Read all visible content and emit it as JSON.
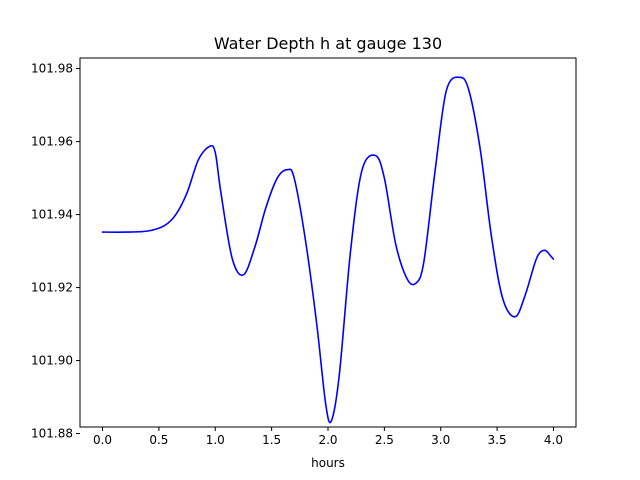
{
  "chart_data": {
    "type": "line",
    "title": "Water Depth h at gauge 130",
    "xlabel": "hours",
    "ylabel": "",
    "xlim": [
      -0.2,
      4.2
    ],
    "ylim": [
      101.8818,
      101.9829
    ],
    "xticks": [
      0.0,
      0.5,
      1.0,
      1.5,
      2.0,
      2.5,
      3.0,
      3.5,
      4.0
    ],
    "xtick_labels": [
      "0.0",
      "0.5",
      "1.0",
      "1.5",
      "2.0",
      "2.5",
      "3.0",
      "3.5",
      "4.0"
    ],
    "yticks": [
      101.88,
      101.9,
      101.92,
      101.94,
      101.96,
      101.98
    ],
    "ytick_labels": [
      "101.88",
      "101.90",
      "101.92",
      "101.94",
      "101.96",
      "101.98"
    ],
    "grid": false,
    "series": [
      {
        "color": "#0000ff",
        "x": [
          0.0,
          0.2,
          0.4,
          0.55,
          0.65,
          0.75,
          0.85,
          0.95,
          1.0,
          1.05,
          1.15,
          1.25,
          1.35,
          1.45,
          1.55,
          1.64,
          1.7,
          1.8,
          1.9,
          1.98,
          2.03,
          2.1,
          2.2,
          2.3,
          2.42,
          2.5,
          2.6,
          2.7,
          2.78,
          2.85,
          2.95,
          3.05,
          3.17,
          3.25,
          3.35,
          3.45,
          3.55,
          3.66,
          3.75,
          3.85,
          3.92,
          3.98,
          4.0
        ],
        "y": [
          101.9352,
          101.9352,
          101.9355,
          101.937,
          101.94,
          101.946,
          101.955,
          101.9587,
          101.957,
          101.946,
          101.928,
          101.9235,
          101.931,
          101.942,
          101.95,
          101.9523,
          101.95,
          101.933,
          101.91,
          101.888,
          101.8835,
          101.896,
          101.93,
          101.952,
          101.9562,
          101.95,
          101.932,
          101.9225,
          101.9212,
          101.927,
          101.952,
          101.974,
          101.9776,
          101.974,
          101.958,
          101.934,
          101.917,
          101.912,
          101.918,
          101.928,
          101.9302,
          101.9285,
          101.9278
        ]
      }
    ]
  }
}
